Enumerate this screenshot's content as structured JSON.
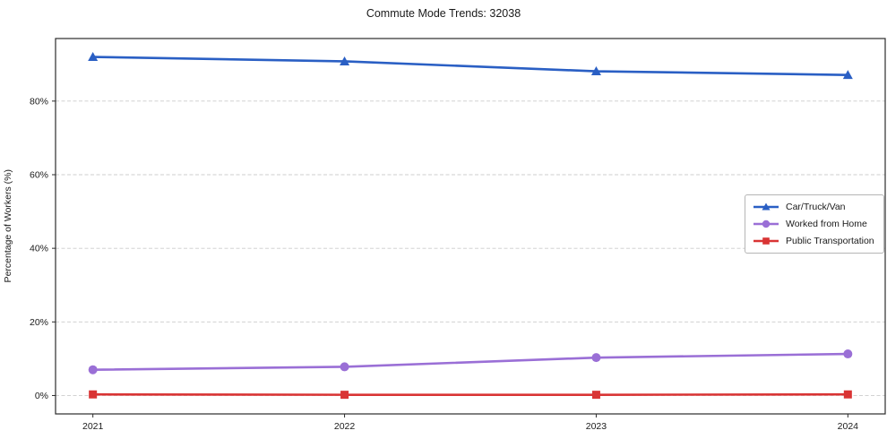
{
  "chart_data": {
    "type": "line",
    "title": "Commute Mode Trends: 32038",
    "xlabel": "",
    "ylabel": "Percentage of Workers (%)",
    "x": [
      "2021",
      "2022",
      "2023",
      "2024"
    ],
    "yticks": [
      0,
      20,
      40,
      60,
      80
    ],
    "ytick_suffix": "%",
    "ylim": [
      -5,
      97
    ],
    "grid": "horizontal-dashed",
    "legend_position": "center-right",
    "series": [
      {
        "name": "Car/Truck/Van",
        "marker": "triangle",
        "color": "#2a5fc4",
        "values": [
          92.0,
          90.8,
          88.1,
          87.1
        ]
      },
      {
        "name": "Worked from Home",
        "marker": "circle",
        "color": "#9a6fd6",
        "values": [
          7.0,
          7.8,
          10.3,
          11.3
        ]
      },
      {
        "name": "Public Transportation",
        "marker": "square",
        "color": "#d93434",
        "values": [
          0.3,
          0.2,
          0.2,
          0.3
        ]
      }
    ],
    "colors": {
      "axis": "#2b2b2b",
      "grid": "#cccccc",
      "tick_text": "#1a1a1a",
      "legend_border": "#b5b5b5"
    }
  }
}
